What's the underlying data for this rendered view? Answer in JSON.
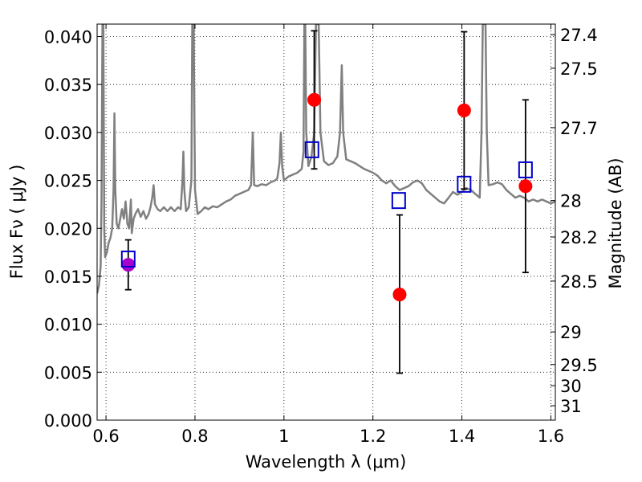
{
  "chart_data": {
    "type": "scatter",
    "xlabel": "Wavelength  λ (μm)",
    "ylabel": "Flux  Fν  ( μJy )",
    "y2label": "Magnitude (AB)",
    "xlim": [
      0.58,
      1.61
    ],
    "ylim": [
      0.0,
      0.0413
    ],
    "grid": true,
    "x_ticks": [
      {
        "value": 0.6,
        "label": "0.6"
      },
      {
        "value": 0.8,
        "label": "0.8"
      },
      {
        "value": 1.0,
        "label": "1"
      },
      {
        "value": 1.2,
        "label": "1.2"
      },
      {
        "value": 1.4,
        "label": "1.4"
      },
      {
        "value": 1.6,
        "label": "1.6"
      }
    ],
    "y_ticks": [
      {
        "value": 0.0,
        "label": "0.000"
      },
      {
        "value": 0.005,
        "label": "0.005"
      },
      {
        "value": 0.01,
        "label": "0.010"
      },
      {
        "value": 0.015,
        "label": "0.015"
      },
      {
        "value": 0.02,
        "label": "0.020"
      },
      {
        "value": 0.025,
        "label": "0.025"
      },
      {
        "value": 0.03,
        "label": "0.030"
      },
      {
        "value": 0.035,
        "label": "0.035"
      },
      {
        "value": 0.04,
        "label": "0.040"
      }
    ],
    "y2_ticks": [
      {
        "label": "27.4",
        "flux": 0.0402
      },
      {
        "label": "27.5",
        "flux": 0.0367
      },
      {
        "label": "27.7",
        "flux": 0.0305
      },
      {
        "label": "28",
        "flux": 0.0229
      },
      {
        "label": "28.2",
        "flux": 0.0191
      },
      {
        "label": "28.5",
        "flux": 0.0145
      },
      {
        "label": "29",
        "flux": 0.0092
      },
      {
        "label": "29.5",
        "flux": 0.0058
      },
      {
        "label": "30",
        "flux": 0.0036
      },
      {
        "label": "31",
        "flux": 0.0015
      }
    ],
    "series": [
      {
        "kind": "line",
        "color": "#808080",
        "points": [
          [
            0.58,
            0.0132
          ],
          [
            0.584,
            0.014
          ],
          [
            0.588,
            0.016
          ],
          [
            0.59,
            0.023
          ],
          [
            0.592,
            0.0413
          ],
          [
            0.594,
            0.0413
          ],
          [
            0.596,
            0.02
          ],
          [
            0.598,
            0.017
          ],
          [
            0.602,
            0.0175
          ],
          [
            0.606,
            0.0185
          ],
          [
            0.61,
            0.019
          ],
          [
            0.614,
            0.02
          ],
          [
            0.617,
            0.024
          ],
          [
            0.619,
            0.032
          ],
          [
            0.621,
            0.024
          ],
          [
            0.624,
            0.0205
          ],
          [
            0.628,
            0.02
          ],
          [
            0.632,
            0.021
          ],
          [
            0.636,
            0.022
          ],
          [
            0.64,
            0.021
          ],
          [
            0.644,
            0.0228
          ],
          [
            0.648,
            0.0205
          ],
          [
            0.652,
            0.02
          ],
          [
            0.656,
            0.023
          ],
          [
            0.658,
            0.0195
          ],
          [
            0.662,
            0.021
          ],
          [
            0.666,
            0.0215
          ],
          [
            0.672,
            0.022
          ],
          [
            0.678,
            0.0212
          ],
          [
            0.684,
            0.0218
          ],
          [
            0.69,
            0.021
          ],
          [
            0.696,
            0.0215
          ],
          [
            0.7,
            0.0222
          ],
          [
            0.704,
            0.0232
          ],
          [
            0.707,
            0.0245
          ],
          [
            0.71,
            0.0225
          ],
          [
            0.716,
            0.022
          ],
          [
            0.722,
            0.0218
          ],
          [
            0.73,
            0.0222
          ],
          [
            0.738,
            0.0218
          ],
          [
            0.746,
            0.0222
          ],
          [
            0.754,
            0.0218
          ],
          [
            0.762,
            0.0222
          ],
          [
            0.768,
            0.022
          ],
          [
            0.772,
            0.025
          ],
          [
            0.774,
            0.028
          ],
          [
            0.776,
            0.024
          ],
          [
            0.78,
            0.0218
          ],
          [
            0.786,
            0.0222
          ],
          [
            0.792,
            0.025
          ],
          [
            0.794,
            0.0413
          ],
          [
            0.797,
            0.0413
          ],
          [
            0.8,
            0.024
          ],
          [
            0.806,
            0.0215
          ],
          [
            0.814,
            0.0218
          ],
          [
            0.822,
            0.0222
          ],
          [
            0.83,
            0.022
          ],
          [
            0.84,
            0.0223
          ],
          [
            0.85,
            0.0222
          ],
          [
            0.86,
            0.0225
          ],
          [
            0.87,
            0.0228
          ],
          [
            0.88,
            0.023
          ],
          [
            0.89,
            0.0234
          ],
          [
            0.9,
            0.0236
          ],
          [
            0.91,
            0.0238
          ],
          [
            0.92,
            0.024
          ],
          [
            0.926,
            0.0245
          ],
          [
            0.93,
            0.03
          ],
          [
            0.933,
            0.0245
          ],
          [
            0.94,
            0.0244
          ],
          [
            0.95,
            0.0246
          ],
          [
            0.96,
            0.0245
          ],
          [
            0.97,
            0.0248
          ],
          [
            0.98,
            0.025
          ],
          [
            0.985,
            0.0252
          ],
          [
            0.99,
            0.0268
          ],
          [
            0.993,
            0.03
          ],
          [
            0.996,
            0.0265
          ],
          [
            1.0,
            0.025
          ],
          [
            1.01,
            0.0254
          ],
          [
            1.02,
            0.0256
          ],
          [
            1.03,
            0.0258
          ],
          [
            1.04,
            0.0262
          ],
          [
            1.044,
            0.028
          ],
          [
            1.046,
            0.0413
          ],
          [
            1.048,
            0.0413
          ],
          [
            1.05,
            0.03
          ],
          [
            1.055,
            0.0265
          ],
          [
            1.062,
            0.0275
          ],
          [
            1.068,
            0.03
          ],
          [
            1.072,
            0.0413
          ],
          [
            1.078,
            0.0413
          ],
          [
            1.082,
            0.03
          ],
          [
            1.09,
            0.027
          ],
          [
            1.1,
            0.0266
          ],
          [
            1.11,
            0.0268
          ],
          [
            1.12,
            0.0275
          ],
          [
            1.126,
            0.03
          ],
          [
            1.13,
            0.037
          ],
          [
            1.133,
            0.03
          ],
          [
            1.14,
            0.0272
          ],
          [
            1.15,
            0.027
          ],
          [
            1.16,
            0.0268
          ],
          [
            1.17,
            0.0265
          ],
          [
            1.18,
            0.0262
          ],
          [
            1.19,
            0.026
          ],
          [
            1.2,
            0.0258
          ],
          [
            1.21,
            0.0255
          ],
          [
            1.22,
            0.025
          ],
          [
            1.23,
            0.0247
          ],
          [
            1.24,
            0.025
          ],
          [
            1.25,
            0.0244
          ],
          [
            1.26,
            0.024
          ],
          [
            1.27,
            0.0242
          ],
          [
            1.28,
            0.0244
          ],
          [
            1.29,
            0.0248
          ],
          [
            1.3,
            0.025
          ],
          [
            1.31,
            0.0247
          ],
          [
            1.32,
            0.024
          ],
          [
            1.33,
            0.0236
          ],
          [
            1.34,
            0.0232
          ],
          [
            1.35,
            0.0228
          ],
          [
            1.36,
            0.0226
          ],
          [
            1.37,
            0.0232
          ],
          [
            1.38,
            0.0238
          ],
          [
            1.39,
            0.0235
          ],
          [
            1.4,
            0.0238
          ],
          [
            1.41,
            0.0242
          ],
          [
            1.42,
            0.024
          ],
          [
            1.43,
            0.0236
          ],
          [
            1.44,
            0.0232
          ],
          [
            1.444,
            0.03
          ],
          [
            1.447,
            0.0413
          ],
          [
            1.453,
            0.0413
          ],
          [
            1.456,
            0.03
          ],
          [
            1.46,
            0.0245
          ],
          [
            1.47,
            0.0246
          ],
          [
            1.48,
            0.0248
          ],
          [
            1.49,
            0.0246
          ],
          [
            1.5,
            0.024
          ],
          [
            1.51,
            0.0236
          ],
          [
            1.52,
            0.0232
          ],
          [
            1.53,
            0.0234
          ],
          [
            1.54,
            0.0232
          ],
          [
            1.55,
            0.0228
          ],
          [
            1.56,
            0.023
          ],
          [
            1.57,
            0.0228
          ],
          [
            1.58,
            0.023
          ],
          [
            1.59,
            0.0228
          ],
          [
            1.6,
            0.0226
          ],
          [
            1.61,
            0.0228
          ]
        ]
      },
      {
        "kind": "points",
        "marker": "square",
        "color": "#0000cc",
        "points": [
          {
            "x": 0.65,
            "y": 0.0168
          },
          {
            "x": 1.063,
            "y": 0.0282
          },
          {
            "x": 1.258,
            "y": 0.0229
          },
          {
            "x": 1.405,
            "y": 0.0246
          },
          {
            "x": 1.543,
            "y": 0.0261
          }
        ]
      },
      {
        "kind": "points",
        "marker": "circle",
        "points": [
          {
            "x": 0.65,
            "y": 0.0162,
            "yerr_low": 0.0136,
            "yerr_high": 0.0188,
            "color": "#aa00cc"
          },
          {
            "x": 1.068,
            "y": 0.0334,
            "yerr_low": 0.0262,
            "yerr_high": 0.0406,
            "color": "#ff0000"
          },
          {
            "x": 1.26,
            "y": 0.0131,
            "yerr_low": 0.0049,
            "yerr_high": 0.0214,
            "color": "#ff0000"
          },
          {
            "x": 1.405,
            "y": 0.0323,
            "yerr_low": 0.0241,
            "yerr_high": 0.0405,
            "color": "#ff0000"
          },
          {
            "x": 1.543,
            "y": 0.0244,
            "yerr_low": 0.0154,
            "yerr_high": 0.0334,
            "color": "#ff0000"
          }
        ]
      }
    ]
  }
}
